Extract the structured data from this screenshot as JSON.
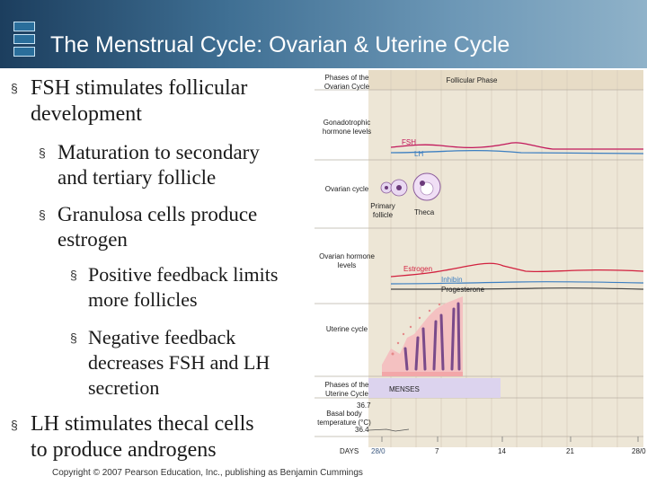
{
  "header": {
    "title": "The Menstrual Cycle:  Ovarian & Uterine Cycle",
    "bg_color": "#2f5d80"
  },
  "bullets": [
    {
      "level": 1,
      "lines": [
        "FSH stimulates follicular",
        "development"
      ]
    },
    {
      "level": 2,
      "lines": [
        "Maturation to secondary",
        "and tertiary follicle"
      ]
    },
    {
      "level": 2,
      "lines": [
        "Granulosa cells produce",
        "estrogen"
      ]
    },
    {
      "level": 3,
      "lines": [
        "Positive feedback limits",
        "more follicles"
      ]
    },
    {
      "level": 3,
      "lines": [
        "Negative feedback",
        "decreases FSH and LH",
        "secretion"
      ]
    },
    {
      "level": 1,
      "lines": [
        "LH stimulates thecal cells",
        "to produce androgens"
      ]
    }
  ],
  "bullet_marker": "§",
  "figure": {
    "row_labels": {
      "phases": "Phases of the Ovarian Cycle",
      "gonadotrophic": "Gonadotrophic hormone levels",
      "ovarian_cycle": "Ovarian cycle",
      "ovarian_hormones": "Ovarian hormone levels",
      "uterine_cycle": "Uterine cycle",
      "uterine_phases": "Phases of the Uterine Cycle",
      "bbt": "Basal body temperature (°C)"
    },
    "follicular_phase": "Follicular Phase",
    "fsh": "FSH",
    "lh": "LH",
    "primary_follicle": "Primary follicle",
    "theca": "Theca",
    "estrogen": "Estrogen",
    "inhibin": "Inhibin",
    "progesterone": "Progesterone",
    "menses": "MENSES",
    "temp_high": "36.7",
    "temp_low": "36.4",
    "days_label": "DAYS",
    "days": [
      "28/0",
      "7",
      "14",
      "21",
      "28/0"
    ],
    "colors": {
      "fsh": "#c2185b",
      "lh": "#3d7fc1",
      "estrogen": "#d2213f",
      "inhibin": "#3d7fc1",
      "progesterone": "#444444",
      "menses_band": "#dcd3ee",
      "panel": "#ede6d6"
    }
  },
  "copyright": "Copyright © 2007 Pearson Education, Inc., publishing as Benjamin Cummings"
}
